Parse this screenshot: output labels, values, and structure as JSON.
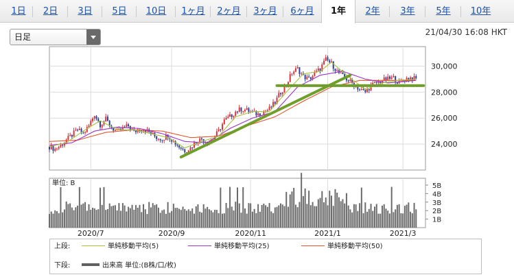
{
  "tabs": [
    {
      "label": "1日",
      "active": false
    },
    {
      "label": "2日",
      "active": false
    },
    {
      "label": "3日",
      "active": false
    },
    {
      "label": "5日",
      "active": false
    },
    {
      "label": "10日",
      "active": false
    },
    {
      "label": "1ヶ月",
      "active": false
    },
    {
      "label": "2ヶ月",
      "active": false
    },
    {
      "label": "3ヶ月",
      "active": false
    },
    {
      "label": "6ヶ月",
      "active": false
    },
    {
      "label": "1年",
      "active": true
    },
    {
      "label": "2年",
      "active": false
    },
    {
      "label": "3年",
      "active": false
    },
    {
      "label": "5年",
      "active": false
    },
    {
      "label": "10年",
      "active": false
    }
  ],
  "toolbar": {
    "period_select": "日足",
    "timestamp": "21/04/30 16:08 HKT"
  },
  "chart_data": {
    "type": "line",
    "price": {
      "ylim": [
        22000,
        31500
      ],
      "yticks": [
        24000,
        26000,
        28000,
        30000
      ],
      "ytick_labels": [
        "24,000",
        "26,000",
        "28,000",
        "30,000"
      ],
      "close": [
        [
          0,
          23800
        ],
        [
          3,
          23600
        ],
        [
          6,
          23900
        ],
        [
          9,
          24300
        ],
        [
          12,
          24700
        ],
        [
          15,
          25100
        ],
        [
          18,
          24800
        ],
        [
          21,
          25400
        ],
        [
          24,
          26300
        ],
        [
          27,
          25500
        ],
        [
          30,
          25900
        ],
        [
          33,
          25300
        ],
        [
          36,
          24900
        ],
        [
          39,
          25200
        ],
        [
          42,
          25400
        ],
        [
          45,
          24900
        ],
        [
          48,
          25200
        ],
        [
          51,
          25100
        ],
        [
          54,
          24800
        ],
        [
          57,
          24500
        ],
        [
          60,
          24400
        ],
        [
          63,
          24700
        ],
        [
          66,
          24200
        ],
        [
          69,
          23800
        ],
        [
          72,
          23500
        ],
        [
          75,
          23700
        ],
        [
          78,
          24200
        ],
        [
          81,
          24400
        ],
        [
          84,
          24200
        ],
        [
          87,
          24400
        ],
        [
          90,
          25000
        ],
        [
          93,
          25800
        ],
        [
          96,
          26100
        ],
        [
          99,
          26500
        ],
        [
          102,
          26700
        ],
        [
          105,
          26600
        ],
        [
          108,
          26400
        ],
        [
          111,
          26300
        ],
        [
          114,
          26500
        ],
        [
          117,
          26700
        ],
        [
          120,
          27200
        ],
        [
          123,
          28000
        ],
        [
          126,
          28600
        ],
        [
          129,
          29500
        ],
        [
          132,
          29800
        ],
        [
          135,
          29200
        ],
        [
          138,
          29000
        ],
        [
          141,
          29400
        ],
        [
          144,
          29800
        ],
        [
          147,
          30500
        ],
        [
          150,
          30200
        ],
        [
          153,
          29600
        ],
        [
          156,
          29200
        ],
        [
          159,
          28900
        ],
        [
          162,
          28600
        ],
        [
          165,
          28200
        ],
        [
          168,
          28000
        ],
        [
          171,
          28500
        ],
        [
          174,
          28700
        ],
        [
          177,
          28900
        ],
        [
          180,
          29000
        ],
        [
          183,
          29100
        ],
        [
          186,
          28700
        ],
        [
          189,
          29000
        ],
        [
          192,
          29100
        ],
        [
          195,
          29000
        ]
      ],
      "ma5": [
        [
          0,
          23800
        ],
        [
          9,
          24100
        ],
        [
          18,
          25000
        ],
        [
          27,
          25800
        ],
        [
          36,
          25100
        ],
        [
          45,
          25100
        ],
        [
          54,
          24800
        ],
        [
          63,
          24500
        ],
        [
          72,
          23700
        ],
        [
          81,
          24200
        ],
        [
          90,
          24600
        ],
        [
          99,
          26100
        ],
        [
          108,
          26500
        ],
        [
          117,
          26500
        ],
        [
          126,
          28000
        ],
        [
          135,
          29400
        ],
        [
          144,
          29600
        ],
        [
          150,
          30300
        ],
        [
          159,
          29200
        ],
        [
          168,
          28200
        ],
        [
          177,
          28700
        ],
        [
          186,
          28900
        ],
        [
          195,
          29000
        ]
      ],
      "ma25": [
        [
          0,
          23900
        ],
        [
          12,
          24100
        ],
        [
          24,
          25000
        ],
        [
          36,
          25300
        ],
        [
          48,
          25200
        ],
        [
          60,
          24800
        ],
        [
          72,
          24200
        ],
        [
          84,
          24100
        ],
        [
          96,
          25200
        ],
        [
          108,
          26000
        ],
        [
          120,
          26500
        ],
        [
          132,
          28400
        ],
        [
          144,
          29300
        ],
        [
          156,
          29600
        ],
        [
          168,
          29000
        ],
        [
          180,
          28700
        ],
        [
          195,
          28900
        ]
      ],
      "ma50": [
        [
          0,
          24200
        ],
        [
          15,
          24300
        ],
        [
          30,
          24900
        ],
        [
          45,
          25100
        ],
        [
          60,
          25000
        ],
        [
          75,
          24500
        ],
        [
          90,
          24600
        ],
        [
          105,
          25400
        ],
        [
          120,
          26100
        ],
        [
          135,
          27300
        ],
        [
          150,
          28400
        ],
        [
          165,
          28900
        ],
        [
          180,
          28900
        ],
        [
          195,
          28900
        ]
      ],
      "trendlines": [
        {
          "from": [
            70,
            23000
          ],
          "to": [
            160,
            29300
          ]
        },
        {
          "from": [
            121,
            28500
          ],
          "to": [
            199,
            28500
          ]
        }
      ]
    },
    "volume": {
      "unit_label": "単位: B",
      "yticks": [
        "1B",
        "2B",
        "3B",
        "4B",
        "5B"
      ],
      "ytick_values": [
        1,
        2,
        3,
        4,
        5
      ]
    },
    "xticks": [
      "2020/7",
      "2020/9",
      "2020/11",
      "2021/1",
      "2021/3"
    ],
    "xtick_positions": [
      22,
      65,
      107,
      148,
      188
    ],
    "colors": {
      "up": "#d8323a",
      "down": "#2b3f94",
      "ma5": "#a7c23d",
      "ma25": "#9b35c4",
      "ma50": "#e0552b",
      "trend": "#6f9e2b",
      "volume": "#6b6b6b"
    }
  },
  "legend": {
    "upper_label": "上段:",
    "ma5_label": "単純移動平均(5)",
    "ma25_label": "単純移動平均(25)",
    "ma50_label": "単純移動平均(50)",
    "lower_label": "下段:",
    "volume_label": "出来高 単位:(B株/口/枚)"
  }
}
